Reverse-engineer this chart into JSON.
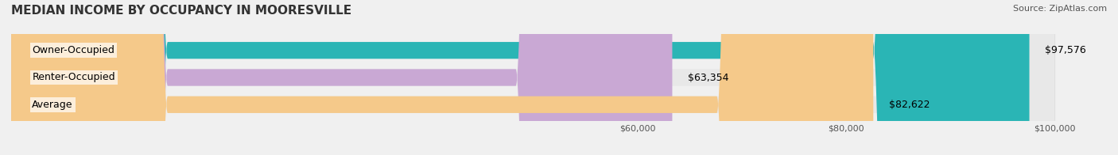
{
  "title": "MEDIAN INCOME BY OCCUPANCY IN MOORESVILLE",
  "source": "Source: ZipAtlas.com",
  "categories": [
    "Owner-Occupied",
    "Renter-Occupied",
    "Average"
  ],
  "values": [
    97576,
    63354,
    82622
  ],
  "labels": [
    "$97,576",
    "$63,354",
    "$82,622"
  ],
  "bar_colors": [
    "#2ab5b5",
    "#c9a8d4",
    "#f5c98a"
  ],
  "bar_edge_colors": [
    "#2ab5b5",
    "#c9a8d4",
    "#f5c98a"
  ],
  "background_color": "#f0f0f0",
  "bar_bg_color": "#e8e8e8",
  "xlim_min": 0,
  "xlim_max": 100000,
  "xtick_values": [
    60000,
    80000,
    100000
  ],
  "xtick_labels": [
    "$60,000",
    "$80,000",
    "$100,000"
  ],
  "title_fontsize": 11,
  "source_fontsize": 8,
  "label_fontsize": 9,
  "category_fontsize": 9
}
